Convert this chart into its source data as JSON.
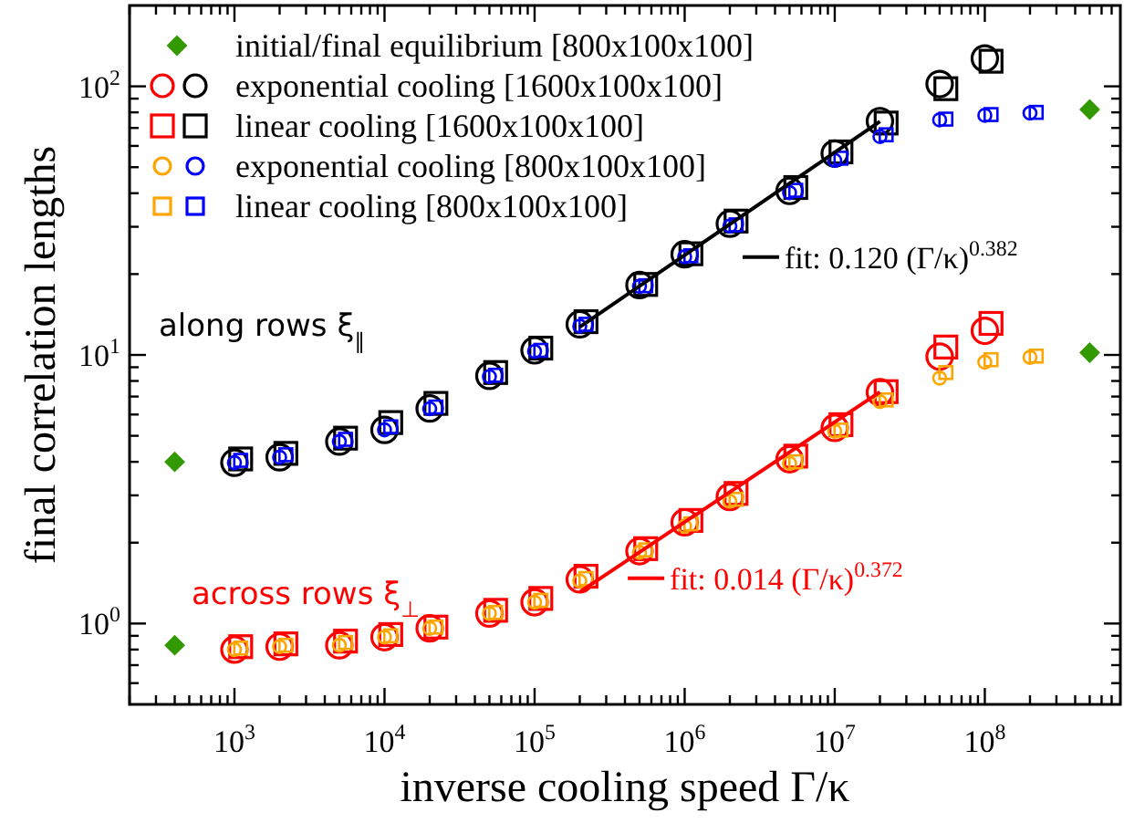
{
  "chart_data": {
    "type": "scatter",
    "xlabel": "inverse cooling speed Γ/κ",
    "ylabel": "final correlation lengths",
    "log": "xy",
    "grid": false,
    "legend": "top left",
    "xlim": [
      200,
      800000000
    ],
    "ylim": [
      0.5,
      200
    ],
    "xticks": [
      {
        "value": 200,
        "label": null
      },
      {
        "value": 300,
        "label": null
      },
      {
        "value": 400,
        "label": null
      },
      {
        "value": 500,
        "label": null
      },
      {
        "value": 600,
        "label": null
      },
      {
        "value": 700,
        "label": null
      },
      {
        "value": 800,
        "label": null
      },
      {
        "value": 900,
        "label": null
      },
      {
        "value": 1000,
        "label": "10$^{3}$"
      },
      {
        "value": 2000,
        "label": null
      },
      {
        "value": 3000,
        "label": null
      },
      {
        "value": 4000,
        "label": null
      },
      {
        "value": 5000,
        "label": null
      },
      {
        "value": 6000,
        "label": null
      },
      {
        "value": 7000,
        "label": null
      },
      {
        "value": 8000,
        "label": null
      },
      {
        "value": 9000,
        "label": null
      },
      {
        "value": 10000,
        "label": "10$^{4}$"
      },
      {
        "value": 20000,
        "label": null
      },
      {
        "value": 30000,
        "label": null
      },
      {
        "value": 40000,
        "label": null
      },
      {
        "value": 50000,
        "label": null
      },
      {
        "value": 60000,
        "label": null
      },
      {
        "value": 70000,
        "label": null
      },
      {
        "value": 80000,
        "label": null
      },
      {
        "value": 90000,
        "label": null
      },
      {
        "value": 100000,
        "label": "10$^{5}$"
      },
      {
        "value": 200000,
        "label": null
      },
      {
        "value": 300000,
        "label": null
      },
      {
        "value": 400000,
        "label": null
      },
      {
        "value": 500000,
        "label": null
      },
      {
        "value": 600000,
        "label": null
      },
      {
        "value": 700000,
        "label": null
      },
      {
        "value": 800000,
        "label": null
      },
      {
        "value": 900000,
        "label": null
      },
      {
        "value": 1000000,
        "label": "10$^{6}$"
      },
      {
        "value": 2000000,
        "label": null
      },
      {
        "value": 3000000,
        "label": null
      },
      {
        "value": 4000000,
        "label": null
      },
      {
        "value": 5000000,
        "label": null
      },
      {
        "value": 6000000,
        "label": null
      },
      {
        "value": 7000000,
        "label": null
      },
      {
        "value": 8000000,
        "label": null
      },
      {
        "value": 9000000,
        "label": null
      },
      {
        "value": 10000000,
        "label": "10$^{7}$"
      },
      {
        "value": 20000000,
        "label": null
      },
      {
        "value": 30000000,
        "label": null
      },
      {
        "value": 40000000,
        "label": null
      },
      {
        "value": 50000000,
        "label": null
      },
      {
        "value": 60000000,
        "label": null
      },
      {
        "value": 70000000,
        "label": null
      },
      {
        "value": 80000000,
        "label": null
      },
      {
        "value": 90000000,
        "label": null
      },
      {
        "value": 100000000,
        "label": "10$^{8}$"
      },
      {
        "value": 200000000,
        "label": null
      },
      {
        "value": 300000000,
        "label": null
      },
      {
        "value": 400000000,
        "label": null
      },
      {
        "value": 500000000,
        "label": null
      },
      {
        "value": 600000000,
        "label": null
      },
      {
        "value": 700000000,
        "label": null
      }
    ],
    "yticks": [
      {
        "value": 0.6,
        "label": null
      },
      {
        "value": 0.7,
        "label": null
      },
      {
        "value": 0.8,
        "label": null
      },
      {
        "value": 0.9,
        "label": null
      },
      {
        "value": 1,
        "label": "10$^{0}$"
      },
      {
        "value": 2,
        "label": null
      },
      {
        "value": 3,
        "label": null
      },
      {
        "value": 4,
        "label": null
      },
      {
        "value": 5,
        "label": null
      },
      {
        "value": 6,
        "label": null
      },
      {
        "value": 7,
        "label": null
      },
      {
        "value": 8,
        "label": null
      },
      {
        "value": 9,
        "label": null
      },
      {
        "value": 10,
        "label": "10$^{1}$"
      },
      {
        "value": 20,
        "label": null
      },
      {
        "value": 30,
        "label": null
      },
      {
        "value": 40,
        "label": null
      },
      {
        "value": 50,
        "label": null
      },
      {
        "value": 60,
        "label": null
      },
      {
        "value": 70,
        "label": null
      },
      {
        "value": 80,
        "label": null
      },
      {
        "value": 90,
        "label": null
      },
      {
        "value": 100,
        "label": "10$^{2}$"
      }
    ],
    "annotations": [
      "along rows ξ$_{∥}$",
      "across rows ξ$_{⊥}$"
    ],
    "series": [
      {
        "name": "initial/final equilibrium [800x100x100]",
        "color": "#339900",
        "marker": "diamond",
        "x": [
          400,
          400,
          500000000,
          500000000
        ],
        "values": [
          4.0,
          0.83,
          82,
          10.2
        ]
      },
      {
        "name": "exponential cooling [1600x100x100]",
        "color": "#000000",
        "marker": "circle",
        "x": [
          1000,
          2000,
          5000,
          10000,
          20000,
          50000,
          100000,
          200000,
          500000,
          1000000,
          2000000,
          5000000,
          10000000,
          20000000,
          50000000,
          100000000
        ],
        "values": [
          3.97,
          4.16,
          4.76,
          5.26,
          6.32,
          8.36,
          10.4,
          13.0,
          18.2,
          23.7,
          30.8,
          40.8,
          56.2,
          74.2,
          102,
          127
        ]
      },
      {
        "color": "#ff0000",
        "marker": "circle",
        "x": [
          1000,
          2000,
          5000,
          10000,
          20000,
          50000,
          100000,
          200000,
          500000,
          1000000,
          2000000,
          5000000,
          10000000,
          20000000,
          50000000,
          100000000
        ],
        "values": [
          0.8,
          0.82,
          0.83,
          0.89,
          0.96,
          1.09,
          1.2,
          1.46,
          1.86,
          2.38,
          2.96,
          4.09,
          5.35,
          7.26,
          9.86,
          12.3
        ]
      },
      {
        "name": "linear cooling [1600x100x100]",
        "color": "#000000",
        "marker": "square",
        "x": [
          1100,
          2200,
          5500,
          11000,
          22000,
          55000,
          110000,
          220000,
          550000,
          1100000,
          2200000,
          5500000,
          11000000,
          22000000,
          55000000,
          110000000
        ],
        "values": [
          4.1,
          4.3,
          4.9,
          5.6,
          6.6,
          8.6,
          10.6,
          13.3,
          18.3,
          23.8,
          31.5,
          42,
          57,
          73,
          98,
          124
        ]
      },
      {
        "color": "#ff0000",
        "marker": "square",
        "x": [
          1100,
          2200,
          5500,
          11000,
          22000,
          55000,
          110000,
          220000,
          550000,
          1100000,
          2200000,
          5500000,
          11000000,
          22000000,
          55000000,
          110000000
        ],
        "values": [
          0.82,
          0.84,
          0.86,
          0.91,
          0.97,
          1.12,
          1.24,
          1.5,
          1.9,
          2.42,
          3.05,
          4.2,
          5.5,
          7.3,
          10.7,
          13.1
        ]
      },
      {
        "name": "exponential cooling [800x100x100]",
        "color": "#0000ff",
        "marker": "circle",
        "x": [
          1000,
          2000,
          5000,
          10000,
          20000,
          50000,
          100000,
          200000,
          500000,
          1000000,
          2000000,
          5000000,
          10000000,
          20000000,
          50000000,
          100000000,
          200000000
        ],
        "values": [
          3.97,
          4.16,
          4.76,
          5.26,
          6.3,
          8.3,
          10.3,
          12.8,
          18.0,
          23.2,
          30.2,
          40.2,
          53,
          65,
          75,
          78,
          79.5
        ]
      },
      {
        "color": "#ffa500",
        "marker": "circle",
        "x": [
          1000,
          2000,
          5000,
          10000,
          20000,
          50000,
          100000,
          200000,
          500000,
          1000000,
          2000000,
          5000000,
          10000000,
          20000000,
          50000000,
          100000000,
          200000000
        ],
        "values": [
          0.8,
          0.82,
          0.83,
          0.89,
          0.96,
          1.09,
          1.2,
          1.44,
          1.84,
          2.3,
          2.85,
          3.95,
          5.2,
          6.7,
          8.2,
          9.4,
          9.8
        ]
      },
      {
        "name": "linear cooling [800x100x100]",
        "color": "#0000ff",
        "marker": "square",
        "x": [
          1100,
          2200,
          5500,
          11000,
          22000,
          55000,
          110000,
          220000,
          550000,
          1100000,
          2200000,
          5500000,
          11000000,
          22000000,
          55000000,
          110000000,
          220000000
        ],
        "values": [
          4.05,
          4.25,
          4.85,
          5.4,
          6.4,
          8.4,
          10.4,
          13,
          18.1,
          23.4,
          30.5,
          41,
          54,
          66,
          75.5,
          78.5,
          80
        ]
      },
      {
        "color": "#ffa500",
        "marker": "square",
        "x": [
          1100,
          2200,
          5500,
          11000,
          22000,
          55000,
          110000,
          220000,
          550000,
          1100000,
          2200000,
          5500000,
          11000000,
          22000000,
          55000000,
          110000000,
          220000000
        ],
        "values": [
          0.81,
          0.83,
          0.85,
          0.9,
          0.97,
          1.1,
          1.22,
          1.47,
          1.88,
          2.35,
          2.9,
          4.0,
          5.25,
          6.8,
          8.6,
          9.6,
          9.9
        ]
      },
      {
        "name": "fit: 0.120 (Γ/κ)$^{0.382}$",
        "type": "line",
        "color": "#000000",
        "marker": "none",
        "x": [
          200000,
          20000000
        ],
        "values": [
          12.7,
          74
        ]
      },
      {
        "name": "fit: 0.014 (Γ/κ)$^{0.372}$",
        "type": "line",
        "color": "#ff0000",
        "marker": "none",
        "x": [
          200000,
          20000000
        ],
        "values": [
          1.31,
          7.28
        ]
      }
    ]
  }
}
